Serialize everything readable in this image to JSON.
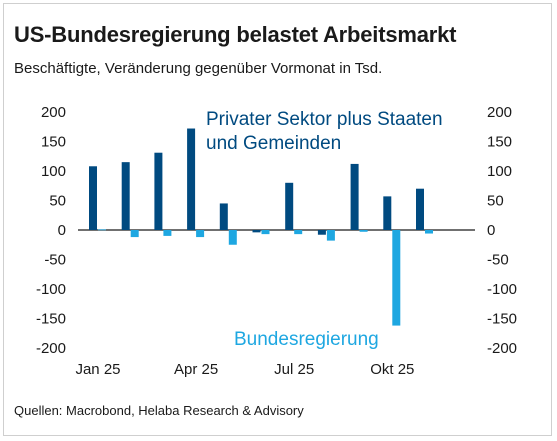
{
  "title": "US-Bundesregierung belastet Arbeitsmarkt",
  "subtitle": "Beschäftigte, Veränderung gegenüber Vormonat in Tsd.",
  "source": "Quellen: Macrobond, Helaba Research & Advisory",
  "chart_data": {
    "type": "bar",
    "categories": [
      "Jan 25",
      "Feb 25",
      "Mär 25",
      "Apr 25",
      "Mai 25",
      "Jun 25",
      "Jul 25",
      "Aug 25",
      "Sep 25",
      "Okt 25",
      "Nov 25"
    ],
    "x_tick_labels": [
      "Jan 25",
      "Apr 25",
      "Jul 25",
      "Okt 25"
    ],
    "series": [
      {
        "name": "Privater Sektor plus Staaten und Gemeinden",
        "label_lines": [
          "Privater Sektor plus Staaten",
          "und Gemeinden"
        ],
        "color": "#004a80",
        "values": [
          108,
          115,
          131,
          172,
          45,
          -4,
          80,
          -8,
          112,
          57,
          70
        ]
      },
      {
        "name": "Bundesregierung",
        "label_lines": [
          "Bundesregierung"
        ],
        "color": "#1ea7e1",
        "values": [
          1,
          -12,
          -10,
          -12,
          -25,
          -7,
          -7,
          -18,
          -3,
          -162,
          -6
        ]
      }
    ],
    "ylim": [
      -200,
      200
    ],
    "yticks": [
      "200",
      "150",
      "100",
      "50",
      "0",
      "-50",
      "-100",
      "-150",
      "-200"
    ],
    "ytick_values": [
      200,
      150,
      100,
      50,
      0,
      -50,
      -100,
      -150,
      -200
    ],
    "grid": false,
    "y_axis_both_sides": true
  }
}
